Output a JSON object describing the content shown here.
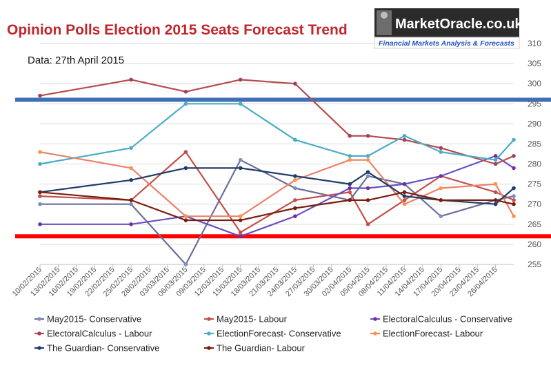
{
  "logo": {
    "main_text": "MarketOracle.co.uk",
    "sub_text": "Financial Markets Analysis & Forecasts"
  },
  "chart_data": {
    "type": "line",
    "title": "Opinion Polls Election 2015 Seats Forecast Trend",
    "subtitle": "Data: 27th April 2015",
    "xlabel": "",
    "ylabel": "",
    "ylim": [
      255,
      310
    ],
    "yticks": [
      255,
      260,
      265,
      270,
      275,
      280,
      285,
      290,
      295,
      300,
      305,
      310
    ],
    "y_axis_side": "right",
    "grid": true,
    "legend_placement": "bottom",
    "x": [
      "10/02/2015",
      "13/02/2015",
      "16/02/2015",
      "19/02/2015",
      "22/02/2015",
      "25/02/2015",
      "28/02/2015",
      "03/03/2015",
      "06/03/2015",
      "09/03/2015",
      "12/03/2015",
      "15/03/2015",
      "18/03/2015",
      "21/03/2015",
      "24/03/2015",
      "27/03/2015",
      "30/03/2015",
      "02/04/2015",
      "05/04/2015",
      "08/04/2015",
      "11/04/2015",
      "14/04/2015",
      "17/04/2015",
      "20/04/2015",
      "23/04/2015",
      "26/04/2015"
    ],
    "reference_lines": [
      {
        "y": 296,
        "color": "#3f6fb5"
      },
      {
        "y": 262,
        "color": "#ff0000"
      }
    ],
    "series": [
      {
        "name": "May2015- Conservative",
        "color": "#6a6e96",
        "marker": "#7c8cc4",
        "points": [
          [
            "10/02/2015",
            270
          ],
          [
            "25/02/2015",
            270
          ],
          [
            "06/03/2015",
            255
          ],
          [
            "15/03/2015",
            281
          ],
          [
            "24/03/2015",
            274
          ],
          [
            "02/04/2015",
            271
          ],
          [
            "05/04/2015",
            277
          ],
          [
            "11/04/2015",
            275
          ],
          [
            "17/04/2015",
            267
          ],
          [
            "26/04/2015",
            271
          ],
          [
            "29/04/2015",
            272
          ]
        ]
      },
      {
        "name": "May2015- Labour",
        "color": "#c0504d",
        "marker": "#c0504d",
        "points": [
          [
            "10/02/2015",
            272
          ],
          [
            "25/02/2015",
            271
          ],
          [
            "06/03/2015",
            283
          ],
          [
            "15/03/2015",
            263
          ],
          [
            "24/03/2015",
            271
          ],
          [
            "02/04/2015",
            273
          ],
          [
            "05/04/2015",
            265
          ],
          [
            "11/04/2015",
            271
          ],
          [
            "17/04/2015",
            277
          ],
          [
            "26/04/2015",
            273
          ],
          [
            "29/04/2015",
            271
          ]
        ]
      },
      {
        "name": "ElectoralCalculus - Conservative",
        "color": "#6a4fc4",
        "marker": "#7030a0",
        "points": [
          [
            "10/02/2015",
            265
          ],
          [
            "25/02/2015",
            265
          ],
          [
            "06/03/2015",
            267
          ],
          [
            "15/03/2015",
            262
          ],
          [
            "24/03/2015",
            267
          ],
          [
            "02/04/2015",
            274
          ],
          [
            "05/04/2015",
            274
          ],
          [
            "11/04/2015",
            275
          ],
          [
            "17/04/2015",
            277
          ],
          [
            "26/04/2015",
            282
          ],
          [
            "29/04/2015",
            279
          ]
        ]
      },
      {
        "name": "ElectoralCalculus - Labour",
        "color": "#b64b4b",
        "marker": "#a04060",
        "points": [
          [
            "10/02/2015",
            297
          ],
          [
            "25/02/2015",
            301
          ],
          [
            "06/03/2015",
            298
          ],
          [
            "15/03/2015",
            301
          ],
          [
            "24/03/2015",
            300
          ],
          [
            "02/04/2015",
            287
          ],
          [
            "05/04/2015",
            287
          ],
          [
            "11/04/2015",
            286
          ],
          [
            "17/04/2015",
            284
          ],
          [
            "26/04/2015",
            280
          ],
          [
            "29/04/2015",
            282
          ]
        ]
      },
      {
        "name": "ElectionForecast- Conservative",
        "color": "#4bacc6",
        "marker": "#4bacc6",
        "points": [
          [
            "10/02/2015",
            280
          ],
          [
            "25/02/2015",
            284
          ],
          [
            "06/03/2015",
            295
          ],
          [
            "15/03/2015",
            295
          ],
          [
            "24/03/2015",
            286
          ],
          [
            "02/04/2015",
            282
          ],
          [
            "05/04/2015",
            282
          ],
          [
            "11/04/2015",
            287
          ],
          [
            "17/04/2015",
            283
          ],
          [
            "26/04/2015",
            281
          ],
          [
            "29/04/2015",
            286
          ]
        ]
      },
      {
        "name": "ElectionForecast- Labour",
        "color": "#e8826b",
        "marker": "#f79646",
        "points": [
          [
            "10/02/2015",
            283
          ],
          [
            "25/02/2015",
            279
          ],
          [
            "06/03/2015",
            267
          ],
          [
            "15/03/2015",
            267
          ],
          [
            "24/03/2015",
            276
          ],
          [
            "02/04/2015",
            281
          ],
          [
            "05/04/2015",
            281
          ],
          [
            "11/04/2015",
            270
          ],
          [
            "17/04/2015",
            274
          ],
          [
            "26/04/2015",
            275
          ],
          [
            "29/04/2015",
            267
          ]
        ]
      },
      {
        "name": "The Guardian- Conservative",
        "color": "#1f3d66",
        "marker": "#1f3d66",
        "points": [
          [
            "10/02/2015",
            273
          ],
          [
            "25/02/2015",
            276
          ],
          [
            "06/03/2015",
            279
          ],
          [
            "15/03/2015",
            279
          ],
          [
            "24/03/2015",
            277
          ],
          [
            "02/04/2015",
            275
          ],
          [
            "05/04/2015",
            278
          ],
          [
            "11/04/2015",
            272
          ],
          [
            "17/04/2015",
            271
          ],
          [
            "26/04/2015",
            270
          ],
          [
            "29/04/2015",
            274
          ]
        ]
      },
      {
        "name": "The Guardian- Labour",
        "color": "#7a1d0e",
        "marker": "#7a1d0e",
        "points": [
          [
            "10/02/2015",
            273
          ],
          [
            "25/02/2015",
            271
          ],
          [
            "06/03/2015",
            266
          ],
          [
            "15/03/2015",
            266
          ],
          [
            "24/03/2015",
            269
          ],
          [
            "02/04/2015",
            271
          ],
          [
            "05/04/2015",
            271
          ],
          [
            "11/04/2015",
            273
          ],
          [
            "17/04/2015",
            271
          ],
          [
            "26/04/2015",
            271
          ],
          [
            "29/04/2015",
            270
          ]
        ]
      }
    ]
  }
}
